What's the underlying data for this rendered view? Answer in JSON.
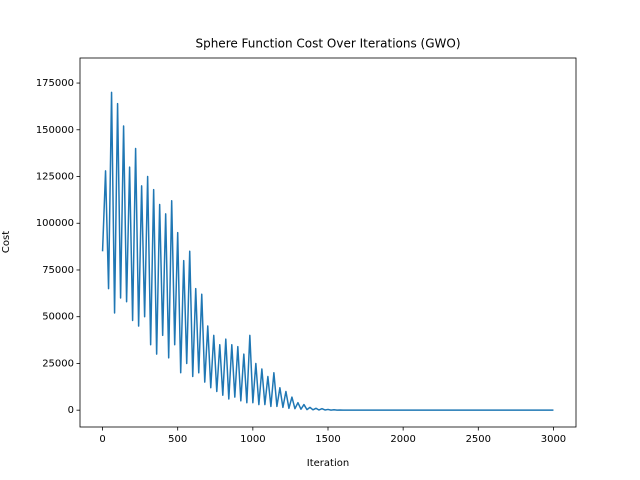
{
  "chart_data": {
    "type": "line",
    "title": "Sphere Function Cost Over Iterations (GWO)",
    "x_label": "Iteration",
    "y_label": "Cost",
    "x": [
      0,
      20,
      40,
      60,
      80,
      100,
      120,
      140,
      160,
      180,
      200,
      220,
      240,
      260,
      280,
      300,
      320,
      340,
      360,
      380,
      400,
      420,
      440,
      460,
      480,
      500,
      520,
      540,
      560,
      580,
      600,
      620,
      640,
      660,
      680,
      700,
      720,
      740,
      760,
      780,
      800,
      820,
      840,
      860,
      880,
      900,
      920,
      940,
      960,
      980,
      1000,
      1020,
      1040,
      1060,
      1080,
      1100,
      1120,
      1140,
      1160,
      1180,
      1200,
      1220,
      1240,
      1260,
      1280,
      1300,
      1320,
      1340,
      1360,
      1380,
      1400,
      1420,
      1440,
      1460,
      1480,
      1500,
      1520,
      1540,
      1560,
      1580,
      1600,
      1700,
      1800,
      1900,
      2000,
      2100,
      2200,
      2300,
      2400,
      2500,
      2600,
      2700,
      2800,
      2900,
      3000
    ],
    "series": [
      {
        "name": "Cost",
        "color": "#1f77b4",
        "values": [
          85000,
          128000,
          65000,
          170000,
          52000,
          164000,
          60000,
          152000,
          58000,
          130000,
          48000,
          140000,
          45000,
          120000,
          50000,
          125000,
          35000,
          118000,
          30000,
          110000,
          40000,
          105000,
          28000,
          112000,
          35000,
          95000,
          20000,
          80000,
          25000,
          85000,
          18000,
          65000,
          20000,
          62000,
          15000,
          45000,
          12000,
          40000,
          10000,
          35000,
          8000,
          38000,
          6000,
          35000,
          7000,
          34000,
          5000,
          30000,
          4000,
          40000,
          4000,
          25000,
          3000,
          22000,
          3000,
          18000,
          2000,
          20000,
          2000,
          12000,
          1500,
          10000,
          1000,
          7000,
          800,
          4000,
          500,
          3000,
          300,
          1500,
          200,
          1000,
          100,
          800,
          100,
          400,
          50,
          200,
          30,
          100,
          20,
          10,
          5,
          3,
          2,
          1,
          1,
          1,
          0,
          0,
          0,
          0,
          0,
          0,
          0
        ]
      }
    ],
    "xlim": [
      -150,
      3150
    ],
    "ylim": [
      -9000,
      188400
    ],
    "xticks": [
      0,
      500,
      1000,
      1500,
      2000,
      2500,
      3000
    ],
    "yticks": [
      0,
      25000,
      50000,
      75000,
      100000,
      125000,
      150000,
      175000
    ],
    "grid": false
  }
}
